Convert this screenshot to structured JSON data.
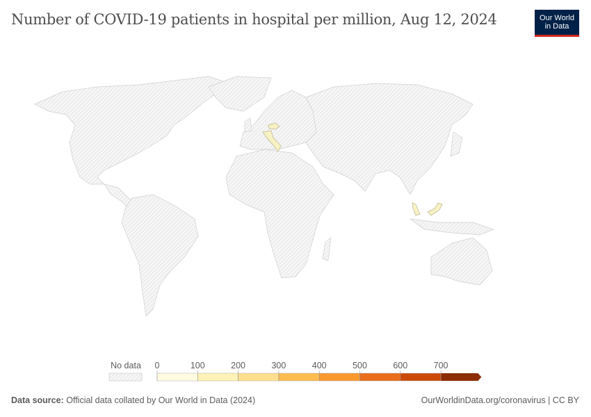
{
  "title": "Number of COVID-19 patients in hospital per million, Aug 12, 2024",
  "logo": {
    "line1": "Our World",
    "line2": "in Data"
  },
  "chart_data": {
    "type": "choropleth-map",
    "title": "Number of COVID-19 patients in hospital per million, Aug 12, 2024",
    "legend": {
      "no_data_label": "No data",
      "ticks": [
        "0",
        "100",
        "200",
        "300",
        "400",
        "500",
        "600",
        "700"
      ],
      "bins": [
        {
          "range": [
            0,
            100
          ],
          "color": "#fffbe1"
        },
        {
          "range": [
            100,
            200
          ],
          "color": "#fff2b6"
        },
        {
          "range": [
            200,
            300
          ],
          "color": "#fedf8e"
        },
        {
          "range": [
            300,
            400
          ],
          "color": "#fdbc4f"
        },
        {
          "range": [
            400,
            500
          ],
          "color": "#fb992d"
        },
        {
          "range": [
            500,
            600
          ],
          "color": "#e96d1a"
        },
        {
          "range": [
            600,
            700
          ],
          "color": "#cb4a05"
        },
        {
          "range": [
            700,
            null
          ],
          "color": "#8c2d04"
        }
      ],
      "placement": "bottom"
    },
    "countries_with_data": [
      {
        "country": "Czechia",
        "bin": "0-100",
        "color": "#f7f1c4"
      },
      {
        "country": "Italy",
        "bin": "0-100",
        "color": "#f7f1c4"
      },
      {
        "country": "Malaysia",
        "bin": "0-100",
        "color": "#f7f1c4"
      }
    ],
    "no_data_color": "hatched light gray"
  },
  "footer": {
    "source_label": "Data source:",
    "source_text": "Official data collated by Our World in Data (2024)",
    "link": "OurWorldinData.org/coronavirus | CC BY"
  }
}
